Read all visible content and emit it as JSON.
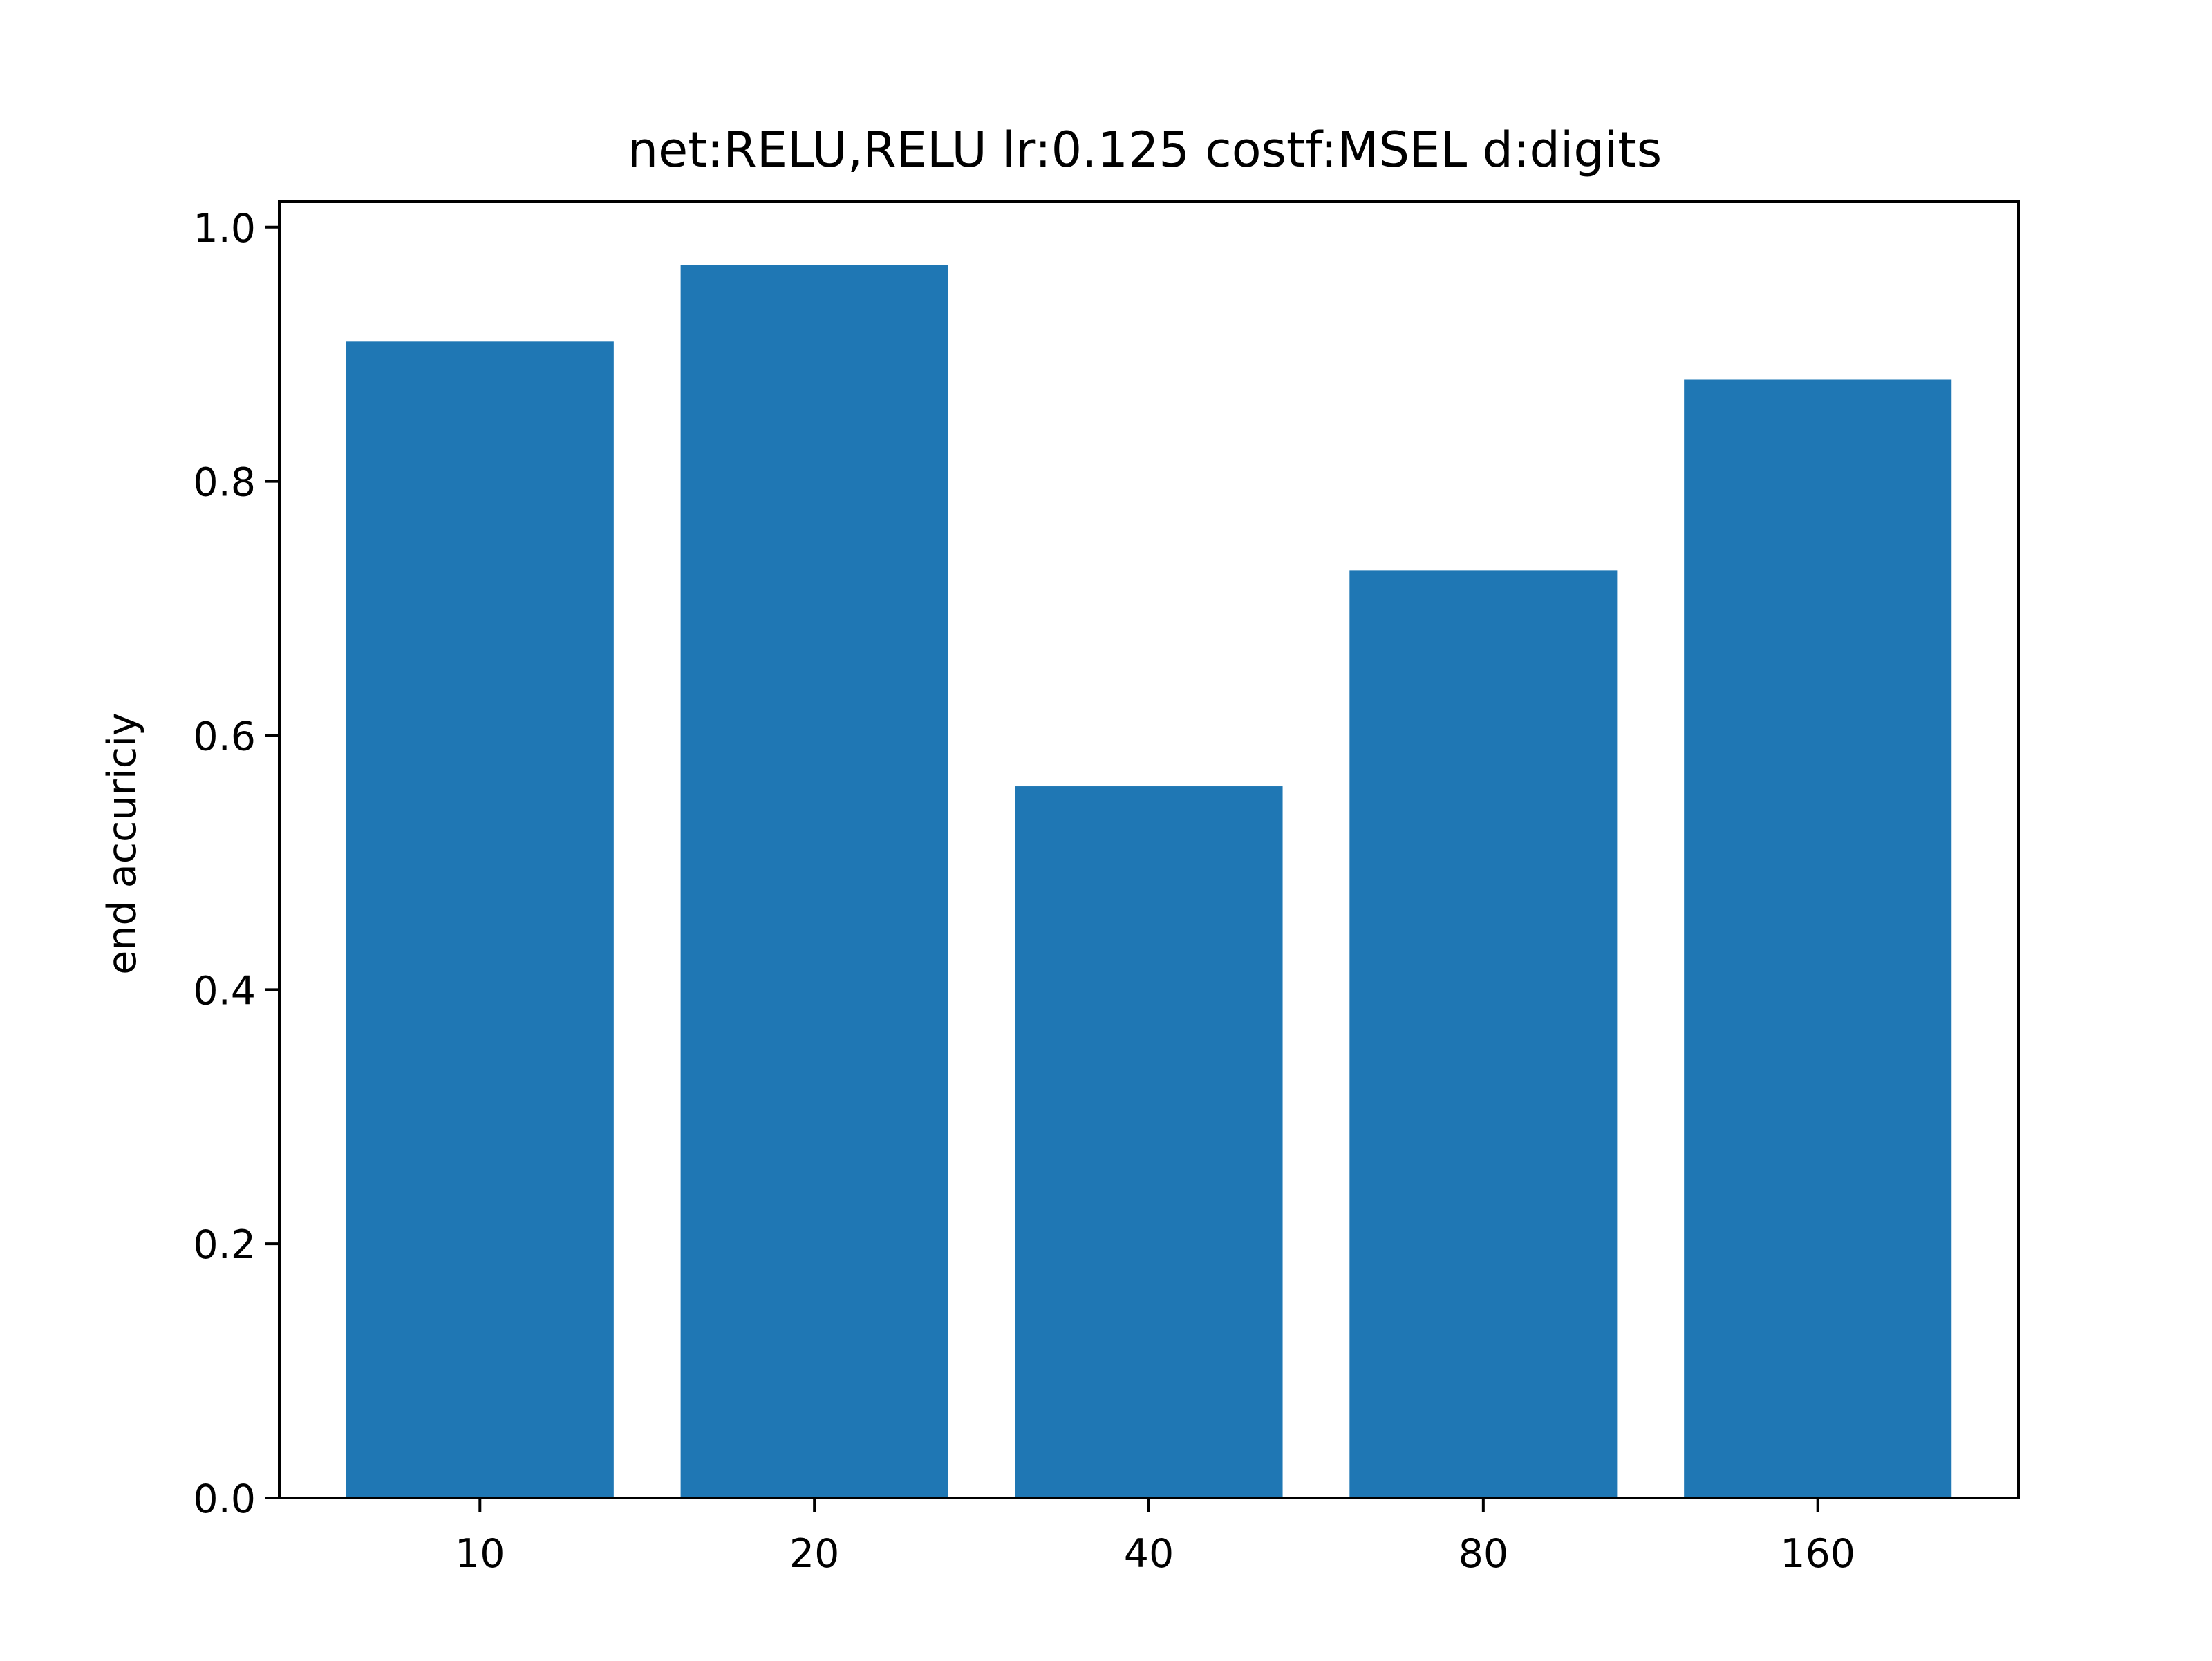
{
  "chart_data": {
    "type": "bar",
    "title": "net:RELU,RELU lr:0.125 costf:MSEL d:digits",
    "xlabel": "",
    "ylabel": "end accuriciy",
    "categories": [
      "10",
      "20",
      "40",
      "80",
      "160"
    ],
    "values": [
      0.91,
      0.97,
      0.56,
      0.73,
      0.88
    ],
    "ylim": [
      0,
      1.02
    ],
    "yticks": [
      0.0,
      0.2,
      0.4,
      0.6,
      0.8,
      1.0
    ],
    "ytick_labels": [
      "0.0",
      "0.2",
      "0.4",
      "0.6",
      "0.8",
      "1.0"
    ],
    "bar_color": "#1f77b4",
    "grid": false,
    "legend": "none"
  }
}
